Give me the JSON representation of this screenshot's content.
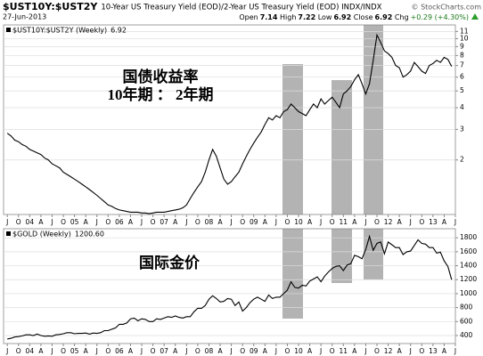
{
  "header": {
    "symbol": "$UST10Y:$UST2Y",
    "description": "10-Year US Treasury Yield (EOD)/2-Year US Treasury Yield (EOD) INDX/INDX",
    "copyright": "© StockCharts.com",
    "date": "27-Jun-2013",
    "quote": [
      {
        "label": "Open",
        "value": 7.14
      },
      {
        "label": "High",
        "value": 7.22
      },
      {
        "label": "Low",
        "value": 6.92
      },
      {
        "label": "Close",
        "value": 6.92
      }
    ],
    "change_label": "Chg",
    "change": "+0.29 (+4.30%)"
  },
  "chart_data": [
    {
      "type": "line",
      "log_scale": true,
      "grid": true,
      "legend_value": "6.92",
      "annotations": [
        "国债收益率",
        "10年期 ： 2年期"
      ],
      "xlim": [
        "2003-06",
        "2013-07"
      ],
      "x": [
        "2003-07",
        "2003-08",
        "2003-09",
        "2003-10",
        "2003-11",
        "2003-12",
        "2004-01",
        "2004-02",
        "2004-03",
        "2004-04",
        "2004-05",
        "2004-06",
        "2004-07",
        "2004-08",
        "2004-09",
        "2004-10",
        "2004-11",
        "2004-12",
        "2005-01",
        "2005-02",
        "2005-03",
        "2005-04",
        "2005-05",
        "2005-06",
        "2005-07",
        "2005-08",
        "2005-09",
        "2005-10",
        "2005-11",
        "2005-12",
        "2006-01",
        "2006-02",
        "2006-03",
        "2006-04",
        "2006-05",
        "2006-06",
        "2006-07",
        "2006-08",
        "2006-09",
        "2006-10",
        "2006-11",
        "2006-12",
        "2007-01",
        "2007-02",
        "2007-03",
        "2007-04",
        "2007-05",
        "2007-06",
        "2007-07",
        "2007-08",
        "2007-09",
        "2007-10",
        "2007-11",
        "2007-12",
        "2008-01",
        "2008-02",
        "2008-03",
        "2008-04",
        "2008-05",
        "2008-06",
        "2008-07",
        "2008-08",
        "2008-09",
        "2008-10",
        "2008-11",
        "2008-12",
        "2009-01",
        "2009-02",
        "2009-03",
        "2009-04",
        "2009-05",
        "2009-06",
        "2009-07",
        "2009-08",
        "2009-09",
        "2009-10",
        "2009-11",
        "2009-12",
        "2010-01",
        "2010-02",
        "2010-03",
        "2010-04",
        "2010-05",
        "2010-06",
        "2010-07",
        "2010-08",
        "2010-09",
        "2010-10",
        "2010-11",
        "2010-12",
        "2011-01",
        "2011-02",
        "2011-03",
        "2011-04",
        "2011-05",
        "2011-06",
        "2011-07",
        "2011-08",
        "2011-09",
        "2011-10",
        "2011-11",
        "2011-12",
        "2012-01",
        "2012-02",
        "2012-03",
        "2012-04",
        "2012-05",
        "2012-06",
        "2012-07",
        "2012-08",
        "2012-09",
        "2012-10",
        "2012-11",
        "2012-12",
        "2013-01",
        "2013-02",
        "2013-03",
        "2013-04",
        "2013-05",
        "2013-06"
      ],
      "series": [
        {
          "name": "$UST10Y:$UST2Y (Weekly)",
          "color": "#000000",
          "values": [
            2.85,
            2.75,
            2.6,
            2.55,
            2.45,
            2.4,
            2.3,
            2.25,
            2.2,
            2.15,
            2.05,
            2.0,
            1.9,
            1.85,
            1.8,
            1.7,
            1.65,
            1.6,
            1.55,
            1.5,
            1.45,
            1.4,
            1.35,
            1.3,
            1.25,
            1.2,
            1.15,
            1.1,
            1.08,
            1.05,
            1.03,
            1.02,
            1.01,
            1.0,
            1.0,
            1.0,
            0.99,
            0.99,
            0.98,
            0.99,
            1.0,
            1.0,
            1.0,
            1.01,
            1.02,
            1.03,
            1.04,
            1.06,
            1.1,
            1.2,
            1.3,
            1.4,
            1.5,
            1.7,
            2.0,
            2.3,
            2.1,
            1.8,
            1.55,
            1.45,
            1.5,
            1.6,
            1.7,
            1.9,
            2.1,
            2.3,
            2.5,
            2.7,
            2.9,
            3.2,
            3.5,
            3.4,
            3.6,
            3.5,
            3.8,
            3.9,
            4.2,
            4.0,
            3.8,
            3.7,
            3.6,
            3.9,
            4.2,
            4.0,
            4.5,
            4.2,
            4.4,
            4.6,
            4.3,
            4.0,
            4.8,
            5.0,
            5.3,
            5.8,
            6.2,
            5.5,
            4.8,
            5.5,
            7.5,
            10.5,
            9.5,
            8.5,
            8.2,
            7.8,
            7.0,
            6.8,
            6.0,
            6.2,
            6.5,
            7.3,
            6.9,
            6.5,
            6.3,
            7.0,
            7.2,
            7.5,
            7.3,
            7.8,
            7.6,
            6.92
          ]
        }
      ],
      "ylim": [
        0.97,
        12
      ],
      "yticks": [
        2,
        3,
        4,
        5,
        6,
        7,
        8,
        9,
        10,
        11
      ],
      "xticks": [
        {
          "value": "2003-07",
          "label": "J"
        },
        {
          "value": "2003-10",
          "label": "O"
        },
        {
          "value": "2004-01",
          "label": "04"
        },
        {
          "value": "2004-04",
          "label": "A"
        },
        {
          "value": "2004-07",
          "label": "J"
        },
        {
          "value": "2004-10",
          "label": "O"
        },
        {
          "value": "2005-01",
          "label": "05"
        },
        {
          "value": "2005-04",
          "label": "A"
        },
        {
          "value": "2005-07",
          "label": "J"
        },
        {
          "value": "2005-10",
          "label": "O"
        },
        {
          "value": "2006-01",
          "label": "06"
        },
        {
          "value": "2006-04",
          "label": "A"
        },
        {
          "value": "2006-07",
          "label": "J"
        },
        {
          "value": "2006-10",
          "label": "O"
        },
        {
          "value": "2007-01",
          "label": "07"
        },
        {
          "value": "2007-04",
          "label": "A"
        },
        {
          "value": "2007-07",
          "label": "J"
        },
        {
          "value": "2007-10",
          "label": "O"
        },
        {
          "value": "2008-01",
          "label": "08"
        },
        {
          "value": "2008-04",
          "label": "A"
        },
        {
          "value": "2008-07",
          "label": "J"
        },
        {
          "value": "2008-10",
          "label": "O"
        },
        {
          "value": "2009-01",
          "label": "09"
        },
        {
          "value": "2009-04",
          "label": "A"
        },
        {
          "value": "2009-07",
          "label": "J"
        },
        {
          "value": "2009-10",
          "label": "O"
        },
        {
          "value": "2010-01",
          "label": "10"
        },
        {
          "value": "2010-04",
          "label": "A"
        },
        {
          "value": "2010-07",
          "label": "J"
        },
        {
          "value": "2010-10",
          "label": "O"
        },
        {
          "value": "2011-01",
          "label": "11"
        },
        {
          "value": "2011-04",
          "label": "A"
        },
        {
          "value": "2011-07",
          "label": "J"
        },
        {
          "value": "2011-10",
          "label": "O"
        },
        {
          "value": "2012-01",
          "label": "12"
        },
        {
          "value": "2012-04",
          "label": "A"
        },
        {
          "value": "2012-07",
          "label": "J"
        },
        {
          "value": "2012-10",
          "label": "O"
        },
        {
          "value": "2013-01",
          "label": "13"
        },
        {
          "value": "2013-04",
          "label": "A"
        },
        {
          "value": "2013-07",
          "label": "J"
        }
      ]
    },
    {
      "type": "line",
      "log_scale": false,
      "grid": true,
      "legend_value": "1200.60",
      "annotations": [
        "国际金价"
      ],
      "xlim": [
        "2003-06",
        "2013-07"
      ],
      "x": [
        "2003-07",
        "2003-08",
        "2003-09",
        "2003-10",
        "2003-11",
        "2003-12",
        "2004-01",
        "2004-02",
        "2004-03",
        "2004-04",
        "2004-05",
        "2004-06",
        "2004-07",
        "2004-08",
        "2004-09",
        "2004-10",
        "2004-11",
        "2004-12",
        "2005-01",
        "2005-02",
        "2005-03",
        "2005-04",
        "2005-05",
        "2005-06",
        "2005-07",
        "2005-08",
        "2005-09",
        "2005-10",
        "2005-11",
        "2005-12",
        "2006-01",
        "2006-02",
        "2006-03",
        "2006-04",
        "2006-05",
        "2006-06",
        "2006-07",
        "2006-08",
        "2006-09",
        "2006-10",
        "2006-11",
        "2006-12",
        "2007-01",
        "2007-02",
        "2007-03",
        "2007-04",
        "2007-05",
        "2007-06",
        "2007-07",
        "2007-08",
        "2007-09",
        "2007-10",
        "2007-11",
        "2007-12",
        "2008-01",
        "2008-02",
        "2008-03",
        "2008-04",
        "2008-05",
        "2008-06",
        "2008-07",
        "2008-08",
        "2008-09",
        "2008-10",
        "2008-11",
        "2008-12",
        "2009-01",
        "2009-02",
        "2009-03",
        "2009-04",
        "2009-05",
        "2009-06",
        "2009-07",
        "2009-08",
        "2009-09",
        "2009-10",
        "2009-11",
        "2009-12",
        "2010-01",
        "2010-02",
        "2010-03",
        "2010-04",
        "2010-05",
        "2010-06",
        "2010-07",
        "2010-08",
        "2010-09",
        "2010-10",
        "2010-11",
        "2010-12",
        "2011-01",
        "2011-02",
        "2011-03",
        "2011-04",
        "2011-05",
        "2011-06",
        "2011-07",
        "2011-08",
        "2011-09",
        "2011-10",
        "2011-11",
        "2011-12",
        "2012-01",
        "2012-02",
        "2012-03",
        "2012-04",
        "2012-05",
        "2012-06",
        "2012-07",
        "2012-08",
        "2012-09",
        "2012-10",
        "2012-11",
        "2012-12",
        "2013-01",
        "2013-02",
        "2013-03",
        "2013-04",
        "2013-05",
        "2013-06"
      ],
      "series": [
        {
          "name": "$GOLD (Weekly)",
          "color": "#000000",
          "values": [
            350,
            360,
            380,
            385,
            395,
            410,
            410,
            400,
            420,
            400,
            390,
            395,
            390,
            410,
            415,
            425,
            440,
            440,
            425,
            430,
            430,
            435,
            420,
            435,
            430,
            440,
            470,
            470,
            490,
            510,
            560,
            560,
            580,
            640,
            650,
            610,
            640,
            630,
            600,
            600,
            640,
            630,
            650,
            670,
            660,
            680,
            660,
            650,
            670,
            670,
            740,
            790,
            790,
            830,
            920,
            970,
            930,
            880,
            890,
            930,
            920,
            830,
            880,
            750,
            800,
            870,
            920,
            950,
            920,
            890,
            980,
            930,
            950,
            950,
            1000,
            1050,
            1170,
            1090,
            1080,
            1120,
            1110,
            1180,
            1210,
            1240,
            1170,
            1250,
            1310,
            1360,
            1390,
            1400,
            1330,
            1410,
            1430,
            1550,
            1530,
            1500,
            1630,
            1820,
            1620,
            1720,
            1740,
            1570,
            1740,
            1700,
            1660,
            1660,
            1560,
            1600,
            1610,
            1690,
            1770,
            1720,
            1710,
            1660,
            1660,
            1580,
            1595,
            1470,
            1390,
            1200.6
          ]
        }
      ],
      "ylim": [
        285,
        1930
      ],
      "yticks": [
        400,
        600,
        800,
        1000,
        1200,
        1400,
        1600,
        1800
      ],
      "xticks": [
        {
          "value": "2003-07",
          "label": "J"
        },
        {
          "value": "2003-10",
          "label": "O"
        },
        {
          "value": "2004-01",
          "label": "04"
        },
        {
          "value": "2004-04",
          "label": "A"
        },
        {
          "value": "2004-07",
          "label": "J"
        },
        {
          "value": "2004-10",
          "label": "O"
        },
        {
          "value": "2005-01",
          "label": "05"
        },
        {
          "value": "2005-04",
          "label": "A"
        },
        {
          "value": "2005-07",
          "label": "J"
        },
        {
          "value": "2005-10",
          "label": "O"
        },
        {
          "value": "2006-01",
          "label": "06"
        },
        {
          "value": "2006-04",
          "label": "A"
        },
        {
          "value": "2006-07",
          "label": "J"
        },
        {
          "value": "2006-10",
          "label": "O"
        },
        {
          "value": "2007-01",
          "label": "07"
        },
        {
          "value": "2007-04",
          "label": "A"
        },
        {
          "value": "2007-07",
          "label": "J"
        },
        {
          "value": "2007-10",
          "label": "O"
        },
        {
          "value": "2008-01",
          "label": "08"
        },
        {
          "value": "2008-04",
          "label": "A"
        },
        {
          "value": "2008-07",
          "label": "J"
        },
        {
          "value": "2008-10",
          "label": "O"
        },
        {
          "value": "2009-01",
          "label": "09"
        },
        {
          "value": "2009-04",
          "label": "A"
        },
        {
          "value": "2009-07",
          "label": "J"
        },
        {
          "value": "2009-10",
          "label": "O"
        },
        {
          "value": "2010-01",
          "label": "10"
        },
        {
          "value": "2010-04",
          "label": "A"
        },
        {
          "value": "2010-07",
          "label": "J"
        },
        {
          "value": "2010-10",
          "label": "O"
        },
        {
          "value": "2011-01",
          "label": "11"
        },
        {
          "value": "2011-04",
          "label": "A"
        },
        {
          "value": "2011-07",
          "label": "J"
        },
        {
          "value": "2011-10",
          "label": "O"
        },
        {
          "value": "2012-01",
          "label": "12"
        },
        {
          "value": "2012-04",
          "label": "A"
        },
        {
          "value": "2012-07",
          "label": "J"
        },
        {
          "value": "2012-10",
          "label": "O"
        },
        {
          "value": "2013-01",
          "label": "13"
        },
        {
          "value": "2013-04",
          "label": "A"
        },
        {
          "value": "2013-07",
          "label": "J"
        }
      ]
    }
  ]
}
